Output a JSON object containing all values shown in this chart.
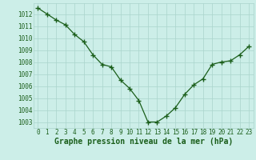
{
  "x": [
    0,
    1,
    2,
    3,
    4,
    5,
    6,
    7,
    8,
    9,
    10,
    11,
    12,
    13,
    14,
    15,
    16,
    17,
    18,
    19,
    20,
    21,
    22,
    23
  ],
  "y": [
    1012.5,
    1012.0,
    1011.5,
    1011.1,
    1010.3,
    1009.7,
    1008.6,
    1007.8,
    1007.6,
    1006.5,
    1005.8,
    1004.8,
    1003.0,
    1003.0,
    1003.5,
    1004.2,
    1005.3,
    1006.1,
    1006.6,
    1007.8,
    1008.0,
    1008.1,
    1008.6,
    1009.3
  ],
  "line_color": "#1a5e1a",
  "marker": "+",
  "marker_size": 4,
  "line_width": 0.9,
  "bg_color": "#cceee8",
  "grid_color": "#aad4cc",
  "ylabel_ticks": [
    1003,
    1004,
    1005,
    1006,
    1007,
    1008,
    1009,
    1010,
    1011,
    1012
  ],
  "ylim": [
    1002.5,
    1012.9
  ],
  "xlim": [
    -0.5,
    23.5
  ],
  "xlabel": "Graphe pression niveau de la mer (hPa)",
  "xlabel_fontsize": 7,
  "tick_fontsize": 5.5,
  "xlabel_color": "#1a5e1a",
  "tick_color": "#1a5e1a"
}
